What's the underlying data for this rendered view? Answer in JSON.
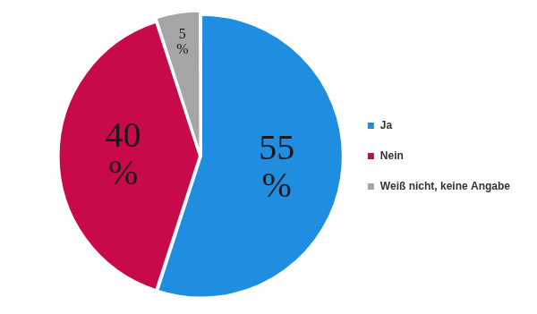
{
  "chart_data": {
    "type": "pie",
    "categories": [
      "Ja",
      "Nein",
      "Weiß nicht, keine Angabe"
    ],
    "values": [
      55,
      40,
      5
    ],
    "value_labels": [
      "55 %",
      "40 %",
      "5 %"
    ],
    "colors": [
      "#1f8de0",
      "#c8094a",
      "#a3a6a5"
    ],
    "data_labels": true,
    "legend": "right"
  }
}
